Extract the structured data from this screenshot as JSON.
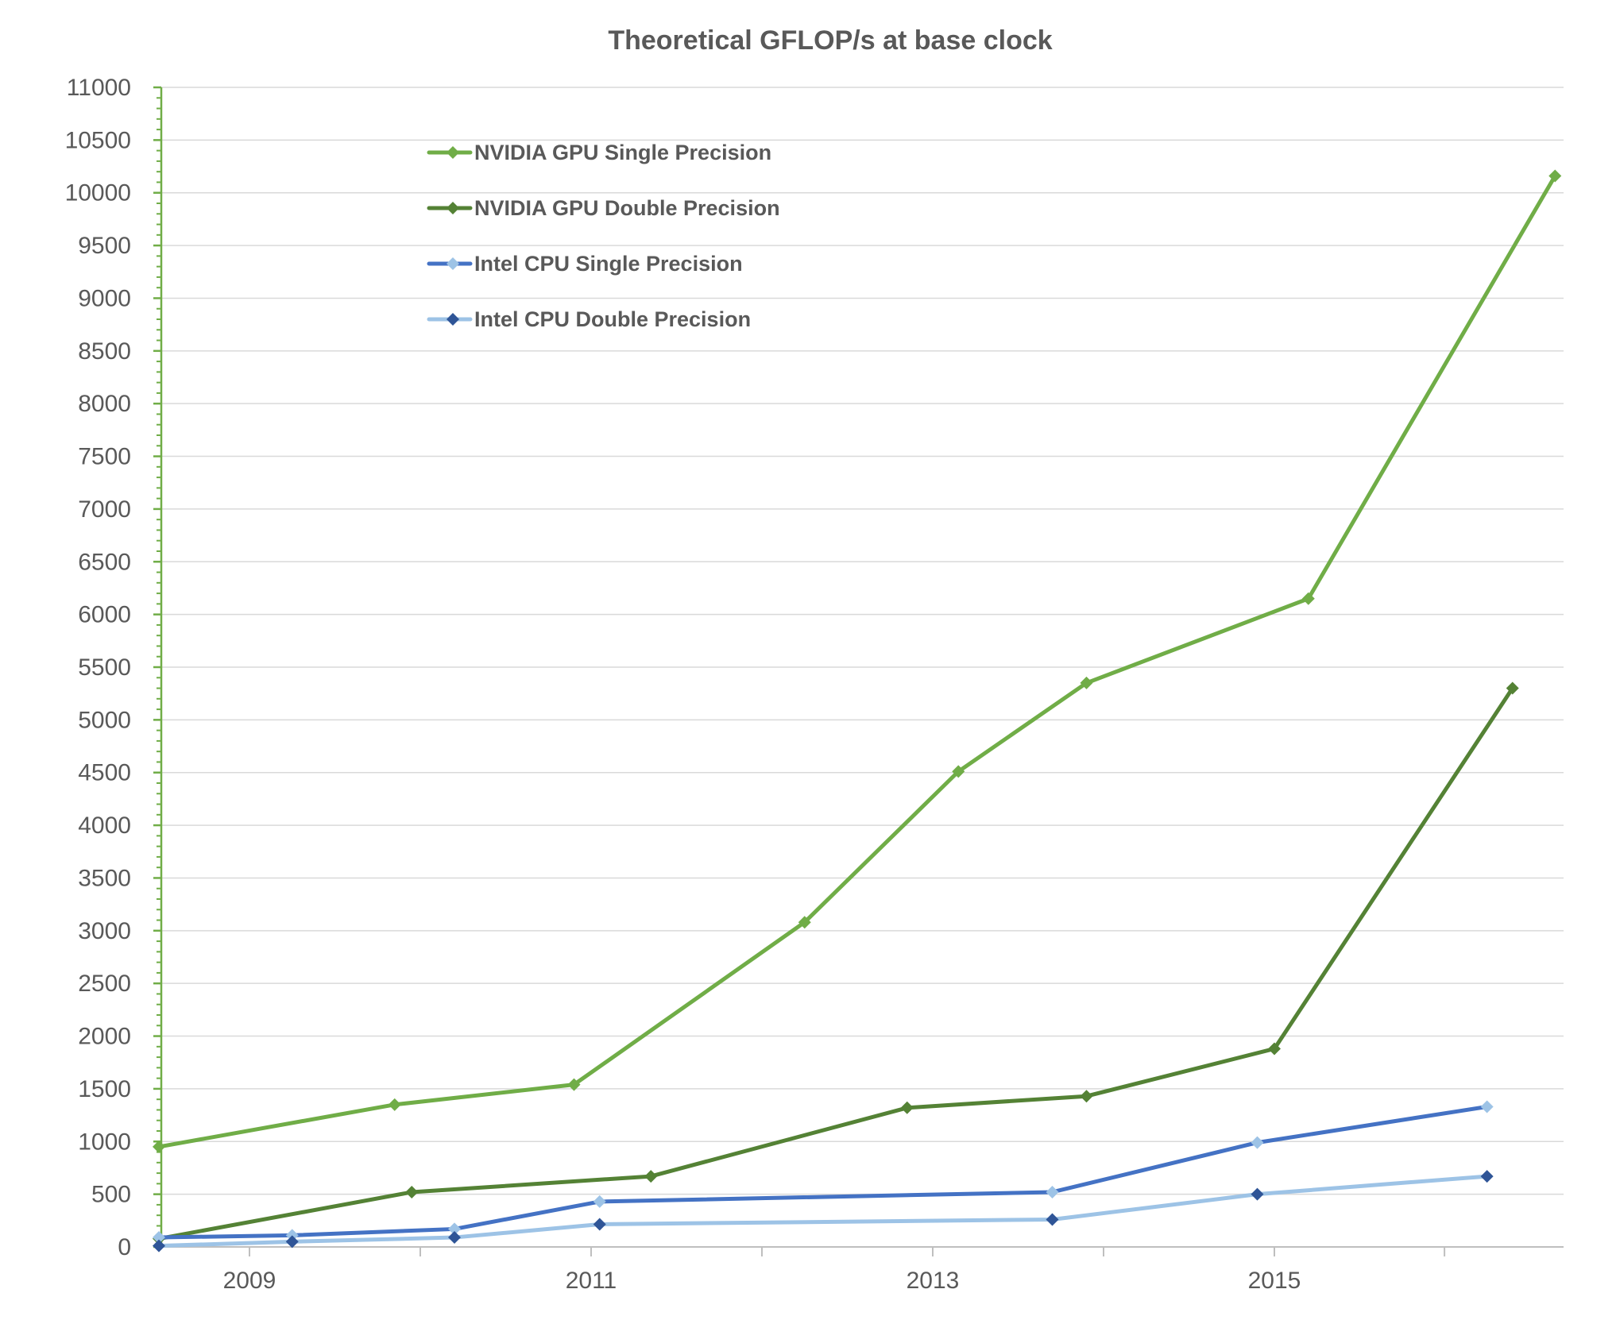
{
  "chart_data": {
    "type": "line",
    "title": "Theoretical GFLOP/s at base clock",
    "xlabel": "",
    "ylabel": "",
    "ylim": [
      0,
      11000
    ],
    "y_ticks": [
      0,
      500,
      1000,
      1500,
      2000,
      2500,
      3000,
      3500,
      4000,
      4500,
      5000,
      5500,
      6000,
      6500,
      7000,
      7500,
      8000,
      8500,
      9000,
      9500,
      10000,
      10500,
      11000
    ],
    "xlim": [
      2008.45,
      2016.7
    ],
    "x_ticks": [
      2009,
      2011,
      2013,
      2015
    ],
    "grid": true,
    "legend_position": "top-left inside plot",
    "series": [
      {
        "name": "NVIDIA GPU Single Precision",
        "color": "#70ad47",
        "marker_color": "#70ad47",
        "x": [
          2008.45,
          2009.85,
          2010.9,
          2012.25,
          2013.15,
          2013.9,
          2015.2,
          2016.65
        ],
        "values": [
          950,
          1350,
          1540,
          3080,
          4510,
          5350,
          6150,
          10160
        ]
      },
      {
        "name": "NVIDIA GPU Double Precision",
        "color": "#548235",
        "marker_color": "#548235",
        "x": [
          2008.45,
          2009.95,
          2011.35,
          2012.85,
          2013.9,
          2015.0,
          2016.4
        ],
        "values": [
          78,
          520,
          670,
          1320,
          1430,
          1880,
          5300
        ]
      },
      {
        "name": "Intel CPU Single Precision",
        "color": "#4472c4",
        "marker_color": "#9dc3e6",
        "x": [
          2008.45,
          2009.25,
          2010.2,
          2011.05,
          2013.7,
          2014.9,
          2016.25
        ],
        "values": [
          90,
          110,
          170,
          430,
          520,
          990,
          1330
        ]
      },
      {
        "name": "Intel CPU Double Precision",
        "color": "#9dc3e6",
        "marker_color": "#2f5597",
        "x": [
          2008.45,
          2009.25,
          2010.2,
          2011.05,
          2013.7,
          2014.9,
          2016.25
        ],
        "values": [
          10,
          50,
          90,
          215,
          260,
          500,
          670
        ]
      }
    ]
  }
}
